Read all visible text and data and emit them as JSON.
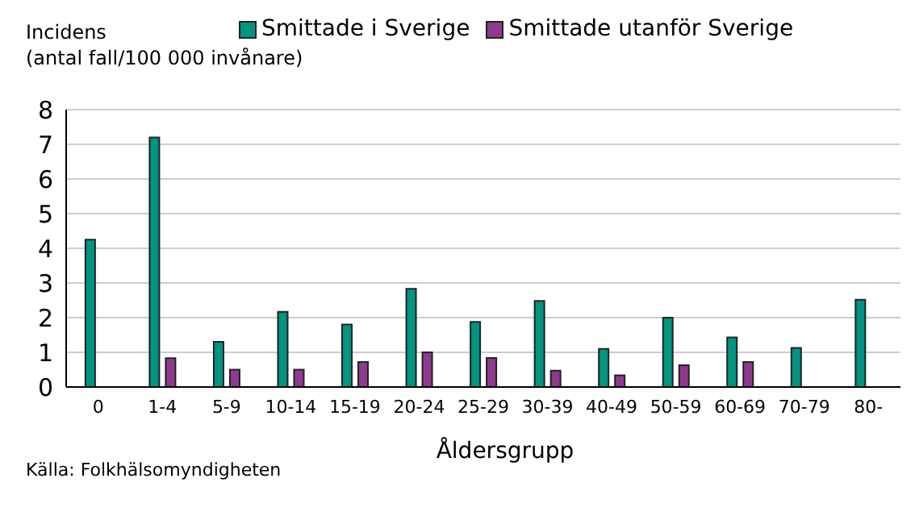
{
  "chart_data": {
    "type": "bar",
    "ylabel": "Incidens\n(antal fall/100 000 invånare)",
    "xlabel": "Åldersgrupp",
    "annotations": [
      "Källa: Folkhälsomyndigheten"
    ],
    "categories": [
      "0",
      "1-4",
      "5-9",
      "10-14",
      "15-19",
      "20-24",
      "25-29",
      "30-39",
      "40-49",
      "50-59",
      "60-69",
      "70-79",
      "80-"
    ],
    "series": [
      {
        "name": "Smittade i Sverige",
        "color": "#009482",
        "values": [
          4.25,
          7.2,
          1.3,
          2.17,
          1.8,
          2.83,
          1.88,
          2.48,
          1.1,
          2.0,
          1.43,
          1.13,
          2.52
        ]
      },
      {
        "name": "Smittade utanför Sverige",
        "color": "#8e3a8e",
        "values": [
          null,
          0.83,
          0.5,
          0.5,
          0.72,
          1.0,
          0.84,
          0.47,
          0.34,
          0.63,
          0.72,
          null,
          null
        ]
      }
    ],
    "ylim": [
      0,
      8
    ],
    "yticks": [
      0,
      1,
      2,
      3,
      4,
      5,
      6,
      7,
      8
    ],
    "grid": "y",
    "legend": "top"
  }
}
